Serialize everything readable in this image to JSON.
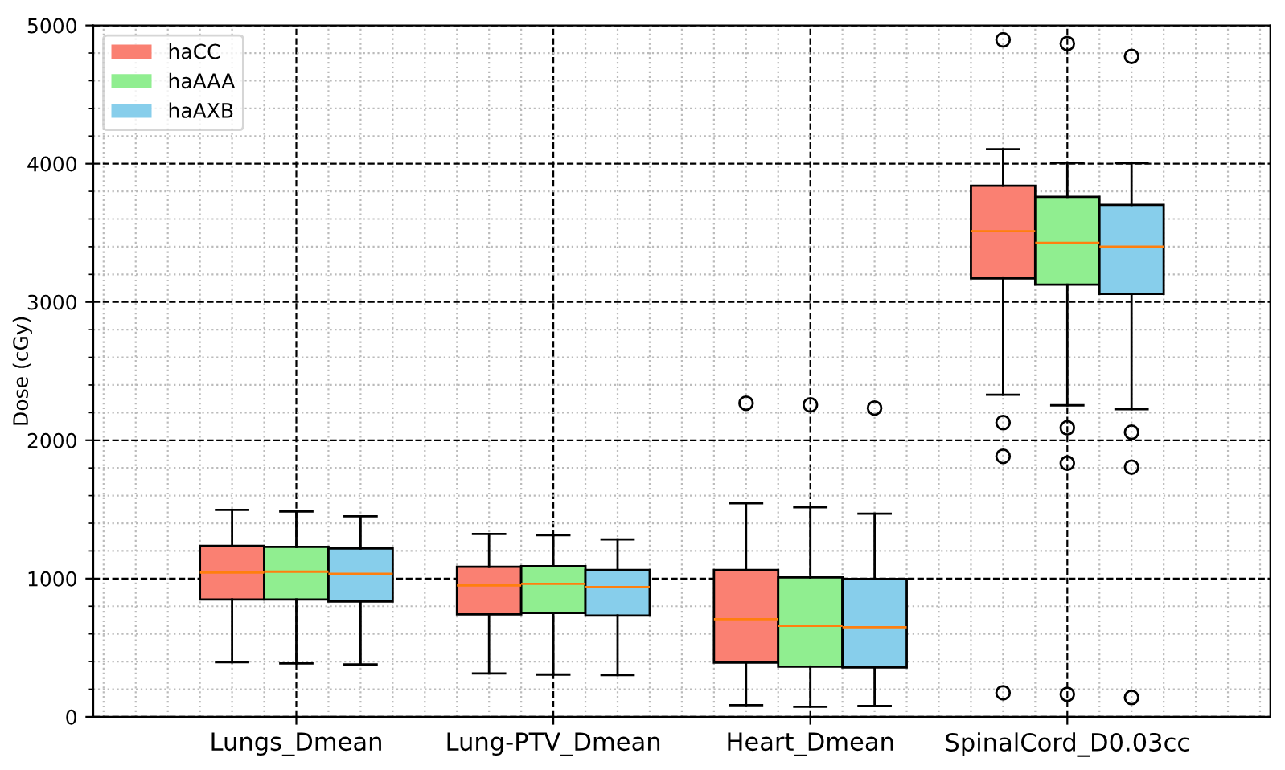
{
  "chart_data": {
    "type": "box",
    "ylabel": "Dose (cGy)",
    "categories": [
      "Lungs_Dmean",
      "Lung-PTV_Dmean",
      "Heart_Dmean",
      "SpinalCord_D0.03cc"
    ],
    "ylim": [
      0,
      5000
    ],
    "yticks": [
      0,
      1000,
      2000,
      3000,
      4000,
      5000
    ],
    "grid": true,
    "legend": "top left",
    "series": [
      {
        "name": "haCC",
        "color": "#fa8072",
        "boxes": [
          {
            "low": 395,
            "q1": 849,
            "median": 1043,
            "q3": 1236,
            "high": 1497
          },
          {
            "low": 314,
            "q1": 741,
            "median": 950,
            "q3": 1085,
            "high": 1322
          },
          {
            "low": 85,
            "q1": 392,
            "median": 706,
            "q3": 1062,
            "high": 1545,
            "outliers": [
              2268
            ]
          },
          {
            "low": 2329,
            "q1": 3171,
            "median": 3512,
            "q3": 3841,
            "high": 4105,
            "outliers": [
              4896,
              2128,
              1884,
              174
            ]
          }
        ]
      },
      {
        "name": "haAAA",
        "color": "#90ee90",
        "boxes": [
          {
            "low": 387,
            "q1": 849,
            "median": 1050,
            "q3": 1229,
            "high": 1485
          },
          {
            "low": 306,
            "q1": 752,
            "median": 962,
            "q3": 1090,
            "high": 1314
          },
          {
            "low": 73,
            "q1": 364,
            "median": 659,
            "q3": 1008,
            "high": 1516,
            "outliers": [
              2256
            ]
          },
          {
            "low": 2253,
            "q1": 3125,
            "median": 3427,
            "q3": 3760,
            "high": 4008,
            "outliers": [
              4869,
              2090,
              1834,
              163
            ]
          }
        ]
      },
      {
        "name": "haAXB",
        "color": "#87ceeb",
        "boxes": [
          {
            "low": 380,
            "q1": 834,
            "median": 1035,
            "q3": 1218,
            "high": 1450
          },
          {
            "low": 302,
            "q1": 733,
            "median": 939,
            "q3": 1062,
            "high": 1283
          },
          {
            "low": 78,
            "q1": 357,
            "median": 648,
            "q3": 997,
            "high": 1469,
            "outliers": [
              2233
            ]
          },
          {
            "low": 2225,
            "q1": 3059,
            "median": 3400,
            "q3": 3702,
            "high": 4004,
            "outliers": [
              4776,
              2058,
              1806,
              140
            ]
          }
        ]
      }
    ]
  }
}
